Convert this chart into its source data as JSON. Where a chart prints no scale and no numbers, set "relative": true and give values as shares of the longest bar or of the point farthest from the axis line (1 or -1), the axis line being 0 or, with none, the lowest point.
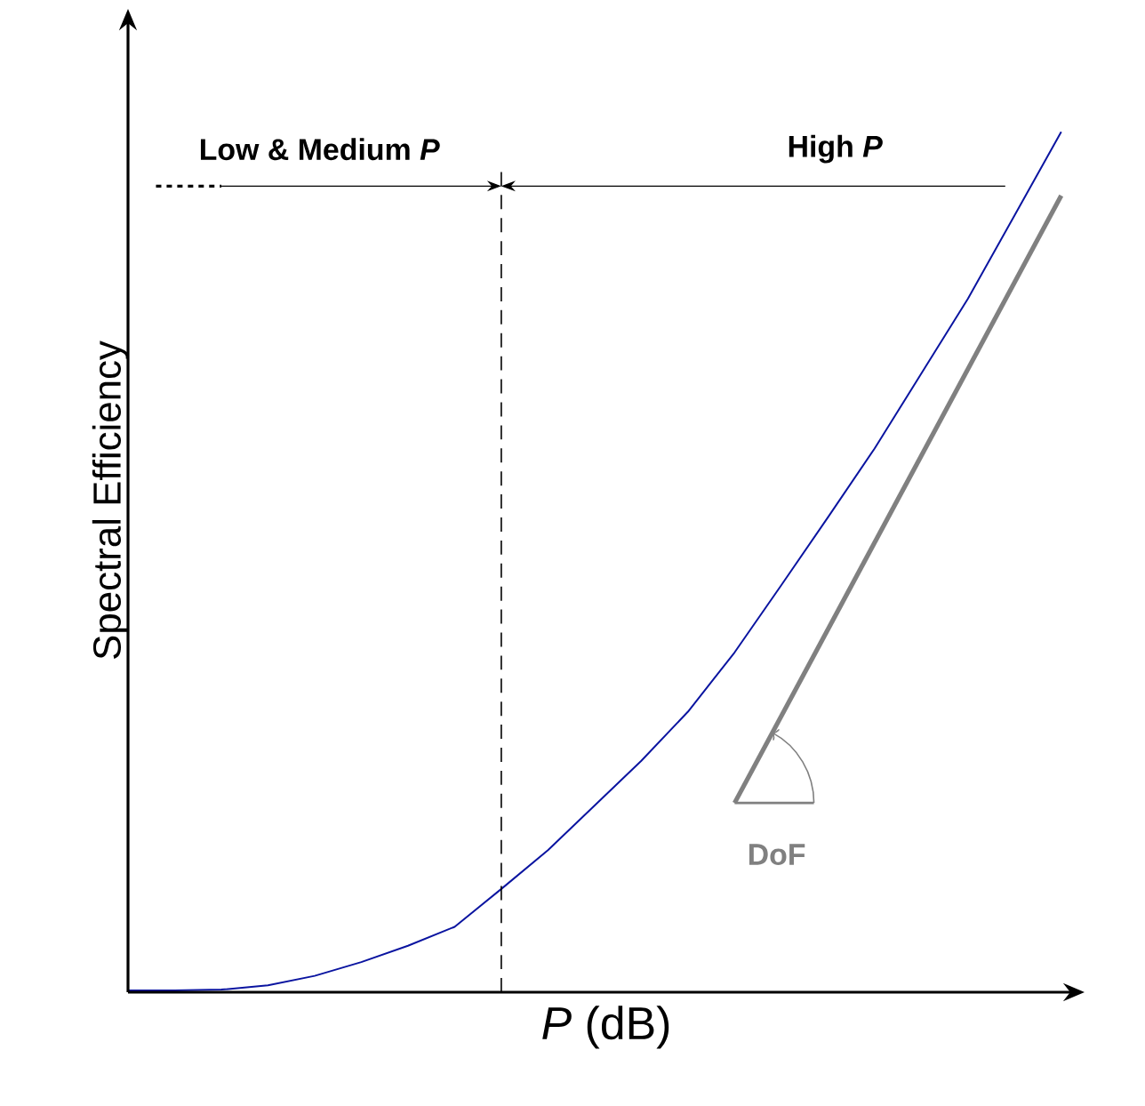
{
  "chart_data": {
    "type": "line",
    "relative": true,
    "xlabel": "*P* (dB)",
    "ylabel": "Spectral Efficiency",
    "annotations": [
      "Low & Medium *P*",
      "High *P*",
      "DoF"
    ],
    "categories": [
      null,
      null,
      null,
      null,
      null,
      null,
      null,
      null,
      null,
      null,
      null,
      null,
      null,
      null,
      null,
      null,
      null,
      null,
      null,
      null,
      null
    ],
    "series": [
      {
        "color": "#0a14a0",
        "values": [
          0.002,
          0.002,
          0.003,
          0.008,
          0.019,
          0.035,
          0.054,
          0.076,
          0.12,
          0.165,
          0.217,
          0.269,
          0.326,
          0.395,
          0.473,
          0.552,
          0.632,
          0.719,
          0.806,
          0.903,
          1
        ]
      },
      {
        "color": "#808080",
        "values": [
          null,
          null,
          null,
          null,
          null,
          null,
          null,
          null,
          null,
          null,
          null,
          null,
          null,
          0.22,
          null,
          null,
          null,
          null,
          null,
          null,
          0.926
        ]
      }
    ]
  }
}
